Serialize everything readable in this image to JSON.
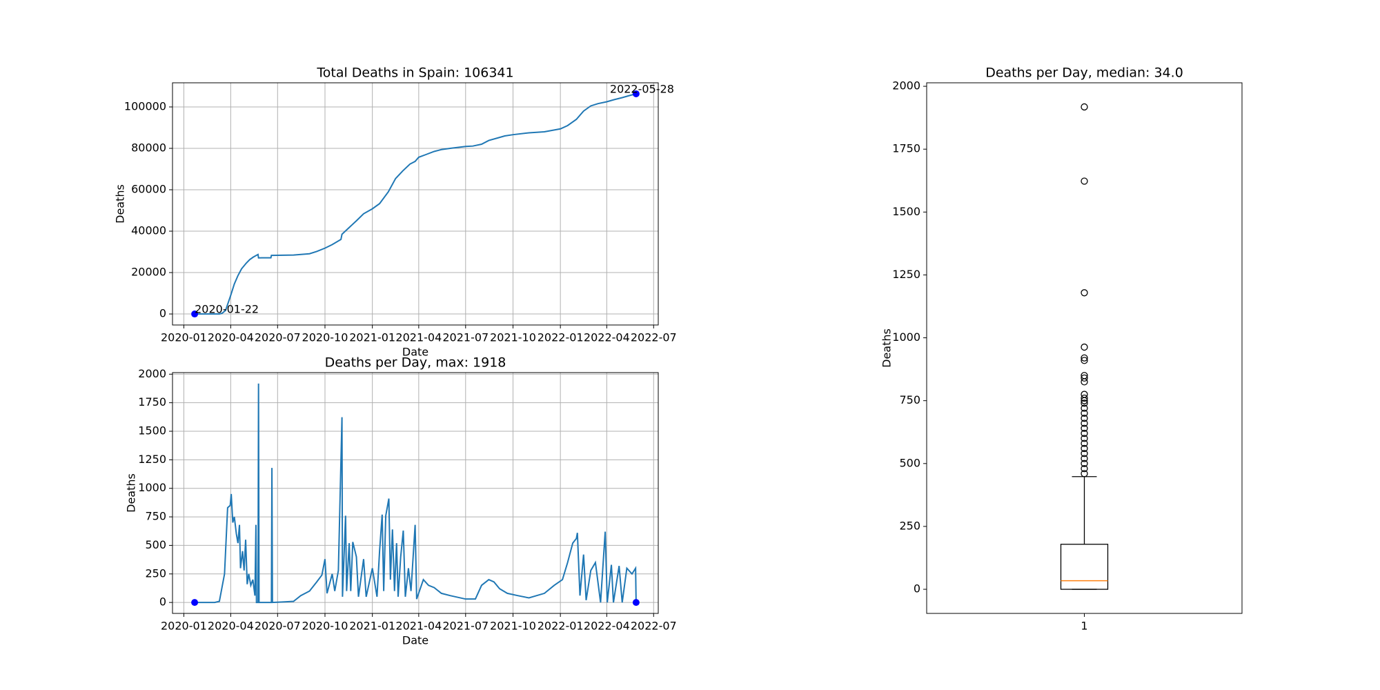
{
  "chart_data": [
    {
      "type": "line",
      "title": "Total Deaths in Spain: 106341",
      "xlabel": "Date",
      "ylabel": "Deaths",
      "color": "#1f77b4",
      "grid": true,
      "marker_color": "blue",
      "x": [
        "2020-01-22",
        "2020-03-01",
        "2020-03-10",
        "2020-03-15",
        "2020-03-22",
        "2020-04-01",
        "2020-04-08",
        "2020-04-15",
        "2020-04-22",
        "2020-05-01",
        "2020-05-08",
        "2020-05-15",
        "2020-05-24",
        "2020-05-25",
        "2020-06-01",
        "2020-06-18",
        "2020-06-19",
        "2020-07-01",
        "2020-08-01",
        "2020-09-01",
        "2020-09-15",
        "2020-10-01",
        "2020-10-15",
        "2020-11-01",
        "2020-11-03",
        "2020-11-15",
        "2020-12-01",
        "2020-12-15",
        "2021-01-01",
        "2021-01-15",
        "2021-02-01",
        "2021-02-15",
        "2021-03-01",
        "2021-03-15",
        "2021-03-25",
        "2021-04-01",
        "2021-04-15",
        "2021-05-01",
        "2021-05-15",
        "2021-06-01",
        "2021-07-01",
        "2021-07-15",
        "2021-08-01",
        "2021-08-15",
        "2021-09-01",
        "2021-09-15",
        "2021-10-01",
        "2021-11-01",
        "2021-12-01",
        "2022-01-01",
        "2022-01-15",
        "2022-02-01",
        "2022-02-15",
        "2022-03-01",
        "2022-03-15",
        "2022-04-01",
        "2022-04-15",
        "2022-05-01",
        "2022-05-15",
        "2022-05-28"
      ],
      "values": [
        0,
        0,
        30,
        300,
        1700,
        9000,
        14500,
        18500,
        21800,
        24500,
        26300,
        27500,
        28750,
        27100,
        27127,
        27150,
        28300,
        28355,
        28450,
        29100,
        30200,
        31800,
        33500,
        36000,
        38500,
        41300,
        45000,
        48400,
        50800,
        53300,
        59000,
        65400,
        69100,
        72400,
        73700,
        75700,
        77000,
        78500,
        79400,
        80000,
        80900,
        81100,
        82000,
        83800,
        85000,
        86000,
        86600,
        87500,
        88000,
        89400,
        91000,
        94000,
        98000,
        100500,
        101600,
        102500,
        103500,
        104500,
        105500,
        106341
      ],
      "xlim": [
        "2019-12-10",
        "2022-07-10"
      ],
      "xticks": [
        {
          "value": "2020-01-01",
          "label": "2020-01"
        },
        {
          "value": "2020-04-01",
          "label": "2020-04"
        },
        {
          "value": "2020-07-01",
          "label": "2020-07"
        },
        {
          "value": "2020-10-01",
          "label": "2020-10"
        },
        {
          "value": "2021-01-01",
          "label": "2021-01"
        },
        {
          "value": "2021-04-01",
          "label": "2021-04"
        },
        {
          "value": "2021-07-01",
          "label": "2021-07"
        },
        {
          "value": "2021-10-01",
          "label": "2021-10"
        },
        {
          "value": "2022-01-01",
          "label": "2022-01"
        },
        {
          "value": "2022-04-01",
          "label": "2022-04"
        },
        {
          "value": "2022-07-01",
          "label": "2022-07"
        }
      ],
      "ylim": [
        -5317,
        111658
      ],
      "yticks": [
        0,
        20000,
        40000,
        60000,
        80000,
        100000
      ],
      "annotations": [
        {
          "text": "2020-01-22",
          "x": "2020-01-22",
          "y": 0,
          "color": "red"
        },
        {
          "text": "2022-05-28",
          "x": "2022-05-28",
          "y": 106341,
          "color": "red"
        }
      ]
    },
    {
      "type": "line",
      "title": "Deaths per Day, max: 1918",
      "xlabel": "Date",
      "ylabel": "Deaths",
      "color": "#1f77b4",
      "grid": true,
      "marker_color": "blue",
      "x": [
        "2020-01-22",
        "2020-03-01",
        "2020-03-10",
        "2020-03-20",
        "2020-03-26",
        "2020-03-31",
        "2020-04-02",
        "2020-04-05",
        "2020-04-08",
        "2020-04-12",
        "2020-04-15",
        "2020-04-18",
        "2020-04-20",
        "2020-04-24",
        "2020-04-27",
        "2020-04-30",
        "2020-05-03",
        "2020-05-06",
        "2020-05-10",
        "2020-05-14",
        "2020-05-18",
        "2020-05-20",
        "2020-05-21",
        "2020-05-24",
        "2020-05-25",
        "2020-05-26",
        "2020-06-19",
        "2020-06-20",
        "2020-06-21",
        "2020-07-15",
        "2020-08-01",
        "2020-08-15",
        "2020-09-01",
        "2020-09-15",
        "2020-09-25",
        "2020-10-01",
        "2020-10-05",
        "2020-10-15",
        "2020-10-20",
        "2020-10-27",
        "2020-11-03",
        "2020-11-04",
        "2020-11-10",
        "2020-11-12",
        "2020-11-17",
        "2020-11-20",
        "2020-11-24",
        "2020-12-01",
        "2020-12-05",
        "2020-12-15",
        "2020-12-20",
        "2021-01-01",
        "2021-01-10",
        "2021-01-15",
        "2021-01-20",
        "2021-01-23",
        "2021-01-27",
        "2021-02-02",
        "2021-02-05",
        "2021-02-09",
        "2021-02-13",
        "2021-02-17",
        "2021-02-20",
        "2021-02-25",
        "2021-03-02",
        "2021-03-06",
        "2021-03-12",
        "2021-03-17",
        "2021-03-25",
        "2021-03-28",
        "2021-04-10",
        "2021-04-20",
        "2021-05-01",
        "2021-05-15",
        "2021-06-01",
        "2021-07-01",
        "2021-07-20",
        "2021-08-01",
        "2021-08-15",
        "2021-08-25",
        "2021-09-05",
        "2021-09-20",
        "2021-10-10",
        "2021-11-01",
        "2021-12-01",
        "2021-12-20",
        "2022-01-05",
        "2022-01-15",
        "2022-01-25",
        "2022-02-01",
        "2022-02-03",
        "2022-02-08",
        "2022-02-15",
        "2022-02-20",
        "2022-03-01",
        "2022-03-10",
        "2022-03-20",
        "2022-03-29",
        "2022-04-02",
        "2022-04-10",
        "2022-04-14",
        "2022-04-25",
        "2022-05-01",
        "2022-05-10",
        "2022-05-20",
        "2022-05-27",
        "2022-05-28"
      ],
      "values": [
        0,
        0,
        10,
        250,
        830,
        850,
        950,
        700,
        750,
        600,
        520,
        680,
        300,
        450,
        280,
        550,
        160,
        250,
        150,
        200,
        60,
        680,
        0,
        0,
        1918,
        0,
        0,
        1179,
        0,
        5,
        10,
        60,
        100,
        180,
        240,
        380,
        80,
        250,
        100,
        280,
        1623,
        50,
        760,
        100,
        520,
        100,
        530,
        400,
        50,
        380,
        50,
        300,
        50,
        450,
        770,
        100,
        760,
        910,
        200,
        640,
        100,
        520,
        50,
        400,
        630,
        50,
        300,
        100,
        680,
        30,
        200,
        150,
        130,
        80,
        60,
        30,
        30,
        150,
        200,
        180,
        120,
        80,
        60,
        40,
        80,
        150,
        200,
        350,
        520,
        560,
        610,
        60,
        420,
        20,
        280,
        350,
        0,
        620,
        0,
        330,
        0,
        320,
        0,
        300,
        250,
        300,
        0
      ],
      "xlim": [
        "2019-12-10",
        "2022-07-10"
      ],
      "xticks": [
        {
          "value": "2020-01-01",
          "label": "2020-01"
        },
        {
          "value": "2020-04-01",
          "label": "2020-04"
        },
        {
          "value": "2020-07-01",
          "label": "2020-07"
        },
        {
          "value": "2020-10-01",
          "label": "2020-10"
        },
        {
          "value": "2021-01-01",
          "label": "2021-01"
        },
        {
          "value": "2021-04-01",
          "label": "2021-04"
        },
        {
          "value": "2021-07-01",
          "label": "2021-07"
        },
        {
          "value": "2021-10-01",
          "label": "2021-10"
        },
        {
          "value": "2022-01-01",
          "label": "2022-01"
        },
        {
          "value": "2022-04-01",
          "label": "2022-04"
        },
        {
          "value": "2022-07-01",
          "label": "2022-07"
        }
      ],
      "ylim": [
        -95.9,
        2013.9
      ],
      "yticks": [
        0,
        250,
        500,
        750,
        1000,
        1250,
        1500,
        1750,
        2000
      ]
    },
    {
      "type": "box",
      "title": "Deaths per Day, median: 34.0",
      "ylabel": "Deaths",
      "grid": false,
      "categories": [
        "1"
      ],
      "median": 34.0,
      "q1": 0,
      "q3": 179,
      "whisker_low": 0,
      "whisker_high": 448,
      "median_color": "#ff7f0e",
      "outliers": [
        1918,
        1623,
        1179,
        963,
        920,
        910,
        850,
        840,
        825,
        775,
        760,
        750,
        740,
        720,
        700,
        680,
        660,
        640,
        620,
        600,
        580,
        560,
        540,
        520,
        500,
        480,
        460
      ],
      "ylim": [
        -95.9,
        2013.9
      ],
      "yticks": [
        0,
        250,
        500,
        750,
        1000,
        1250,
        1500,
        1750,
        2000
      ]
    }
  ]
}
